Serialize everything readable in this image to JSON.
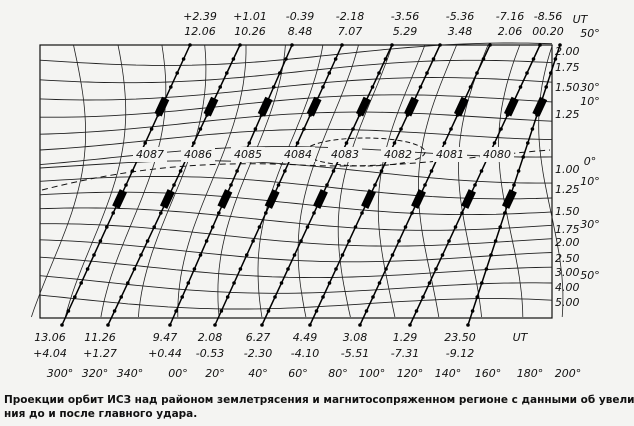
{
  "top_labels": [
    {
      "delta": "+2.39",
      "ut": "12.06"
    },
    {
      "delta": "+1.01",
      "ut": "10.26"
    },
    {
      "delta": "-0.39",
      "ut": "8.48"
    },
    {
      "delta": "-2.18",
      "ut": "7.07"
    },
    {
      "delta": "-3.56",
      "ut": "5.29"
    },
    {
      "delta": "-5.36",
      "ut": "3.48"
    },
    {
      "delta": "-7.16",
      "ut": "2.06"
    },
    {
      "delta": "-8.56",
      "ut": "00.20"
    }
  ],
  "top_ut": "UT",
  "orbits": [
    "4087",
    "4086",
    "4085",
    "4084",
    "4083",
    "4082",
    "4081",
    "4080"
  ],
  "bottom_labels": [
    {
      "ut": "13.06",
      "delta": "+4.04"
    },
    {
      "ut": "11.26",
      "delta": "+1.27"
    },
    {
      "ut": "9.47",
      "delta": "+0.44"
    },
    {
      "ut": "2.08",
      "delta": "-0.53"
    },
    {
      "ut": "6.27",
      "delta": "-2.30"
    },
    {
      "ut": "4.49",
      "delta": "-4.10"
    },
    {
      "ut": "3.08",
      "delta": "-5.51"
    },
    {
      "ut": "1.29",
      "delta": "-7.31"
    },
    {
      "ut": "23.50",
      "delta": "-9.12"
    }
  ],
  "bottom_ut": "UT",
  "longitudes": [
    "300°",
    "320°",
    "340°",
    "00°",
    "20°",
    "40°",
    "60°",
    "80°",
    "100°",
    "120°",
    "140°",
    "160°",
    "180°",
    "200°"
  ],
  "latitudes": [
    "50°",
    "30°",
    "10°",
    "0°",
    "10°",
    "30°",
    "50°"
  ],
  "l_shells": [
    "2.00",
    "1.75",
    "1.50",
    "1.25",
    "1.00",
    "1.25",
    "1.50",
    "1.75",
    "2.00",
    "2.50",
    "3.00",
    "4.00",
    "5.00"
  ],
  "caption": [
    "Проекции орбит ИСЗ над районом землетрясения и магнитосопряженном регионе с данными об увеличении излуче-",
    "ния до и после главного удара."
  ]
}
